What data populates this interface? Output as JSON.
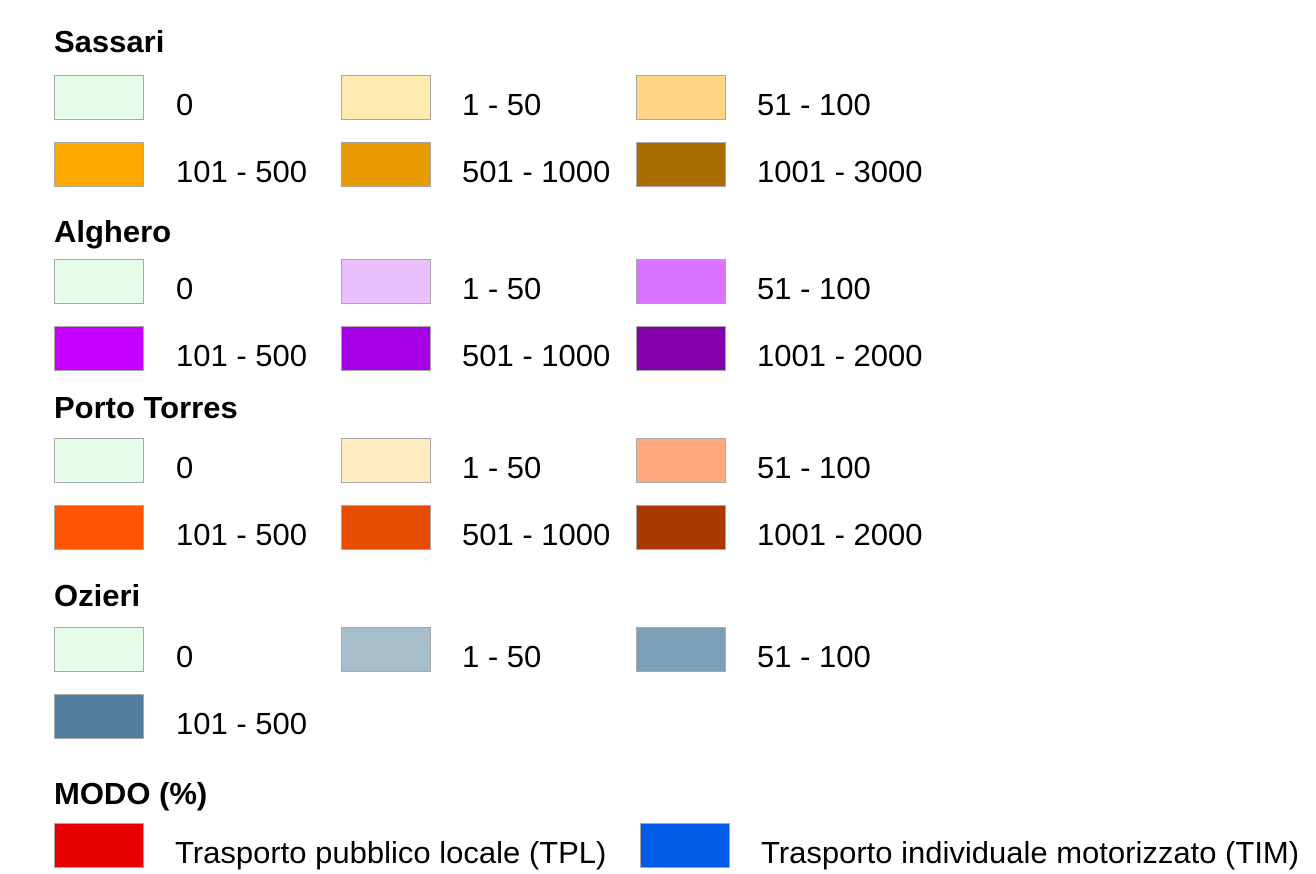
{
  "sections": [
    {
      "title": "Sassari",
      "items": [
        {
          "label": "0",
          "color": "#e3fde9"
        },
        {
          "label": "1 - 50",
          "color": "#ffeab0"
        },
        {
          "label": "51 - 100",
          "color": "#ffd484"
        },
        {
          "label": "101 - 500",
          "color": "#ffa800"
        },
        {
          "label": "501 - 1000",
          "color": "#e89900"
        },
        {
          "label": "1001 - 3000",
          "color": "#a66c00"
        }
      ]
    },
    {
      "title": "Alghero",
      "items": [
        {
          "label": "0",
          "color": "#e3fde9"
        },
        {
          "label": "1 - 50",
          "color": "#eac0ff"
        },
        {
          "label": "51 - 100",
          "color": "#dc73ff"
        },
        {
          "label": "101 - 500",
          "color": "#c500ff"
        },
        {
          "label": "501 - 1000",
          "color": "#a800e6"
        },
        {
          "label": "1001 - 2000",
          "color": "#8400a8"
        }
      ]
    },
    {
      "title": "Porto Torres",
      "items": [
        {
          "label": "0",
          "color": "#e3fde9"
        },
        {
          "label": "1 - 50",
          "color": "#ffebbf"
        },
        {
          "label": "51 - 100",
          "color": "#ffa77f"
        },
        {
          "label": "101 - 500",
          "color": "#ff5500"
        },
        {
          "label": "501 - 1000",
          "color": "#e64c00"
        },
        {
          "label": "1001 - 2000",
          "color": "#a83800"
        }
      ]
    },
    {
      "title": "Ozieri",
      "items": [
        {
          "label": "0",
          "color": "#e3fde9"
        },
        {
          "label": "1 - 50",
          "color": "#a6bdcc"
        },
        {
          "label": "51 - 100",
          "color": "#7c9fb8"
        },
        {
          "label": "101 - 500",
          "color": "#537f9e"
        }
      ]
    }
  ],
  "modo": {
    "title": "MODO (%)",
    "items": [
      {
        "label": "Trasporto pubblico locale (TPL)",
        "color": "#e60000"
      },
      {
        "label": "Trasporto individuale motorizzato (TIM)",
        "color": "#005ce6"
      }
    ]
  }
}
